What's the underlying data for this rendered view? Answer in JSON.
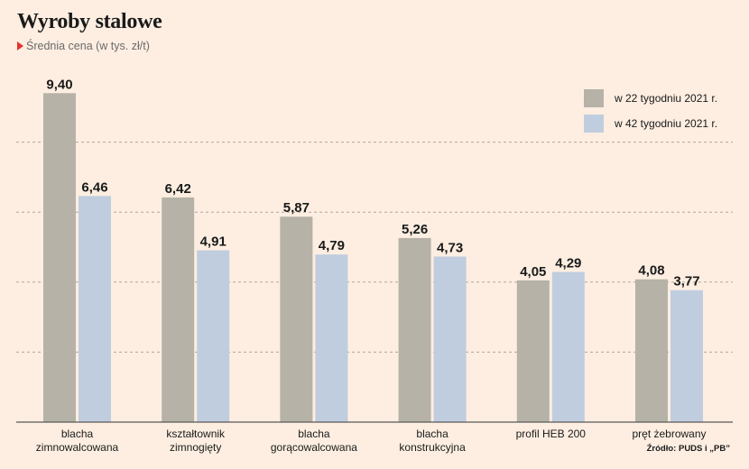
{
  "header": {
    "title": "Wyroby stalowe",
    "subtitle": "Średnia cena (w tys. zł/t)"
  },
  "source": "Źródło: PUDS i „PB”",
  "colors": {
    "background": "#fdeee1",
    "series1": "#b6b2a7",
    "series2": "#c0cddf",
    "gridline": "#b0a69c",
    "accent": "#e3342f"
  },
  "chart_data": {
    "type": "bar",
    "categories": [
      [
        "blacha",
        "zimnowalcowana"
      ],
      [
        "kształtownik",
        "zimnogięty"
      ],
      [
        "blacha",
        "gorącowalcowana"
      ],
      [
        "blacha",
        "konstrukcyjna"
      ],
      [
        "profil HEB 200"
      ],
      [
        "pręt żebrowany"
      ]
    ],
    "series": [
      {
        "name": "w 22 tygodniu 2021 r.",
        "values": [
          9.4,
          6.42,
          5.87,
          5.26,
          4.05,
          4.08
        ],
        "labels": [
          "9,40",
          "6,42",
          "5,87",
          "5,26",
          "4,05",
          "4,08"
        ]
      },
      {
        "name": "w 42 tygodniu 2021 r.",
        "values": [
          6.46,
          4.91,
          4.79,
          4.73,
          4.29,
          3.77
        ],
        "labels": [
          "6,46",
          "4,91",
          "4,79",
          "4,73",
          "4,29",
          "3,77"
        ]
      }
    ],
    "ylim": [
      0,
      10
    ],
    "grid": true,
    "legend_position": "top-right"
  }
}
